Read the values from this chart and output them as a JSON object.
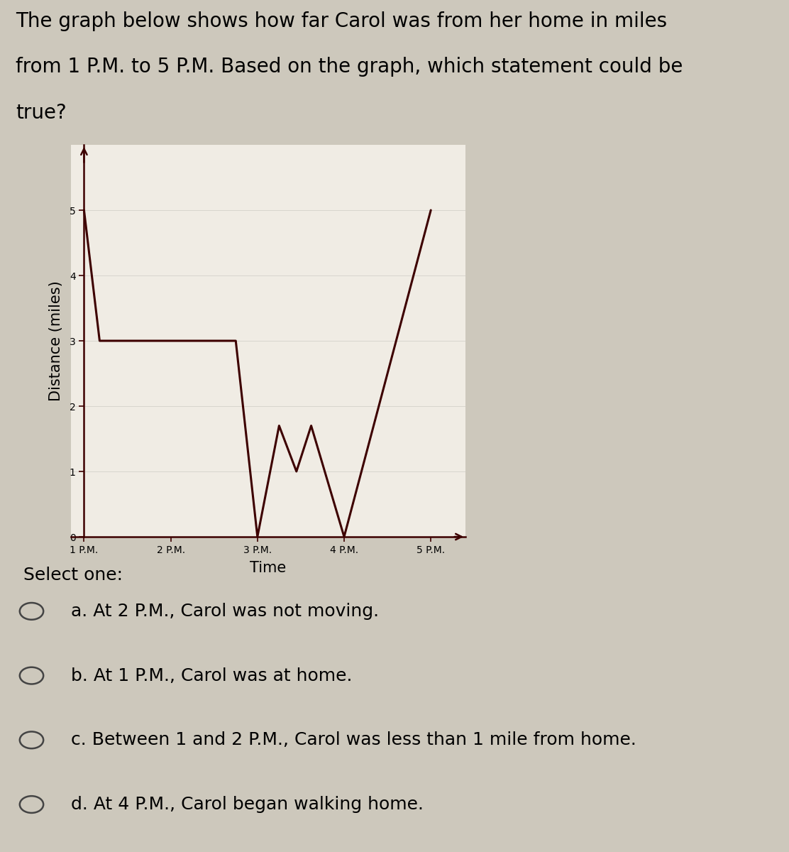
{
  "title_line1": "The graph below shows how far Carol was from her home in miles",
  "title_line2": "from 1 P.M. to 5 P.M. Based on the graph, which statement could be",
  "title_line3": "true?",
  "xlabel": "Time",
  "ylabel": "Distance (miles)",
  "x_ticks": [
    1,
    2,
    3,
    4,
    5
  ],
  "x_tick_labels": [
    "1 P.M.",
    "2 P.M.",
    "3 P.M.",
    "4 P.M.",
    "5 P.M."
  ],
  "y_ticks": [
    0,
    1,
    2,
    3,
    4,
    5
  ],
  "xlim": [
    0.85,
    5.4
  ],
  "ylim": [
    0,
    6.0
  ],
  "line_x": [
    1,
    1.18,
    1.5,
    2.5,
    2.75,
    3.0,
    3.25,
    3.45,
    3.62,
    4.0,
    5.0
  ],
  "line_y": [
    5,
    3,
    3,
    3,
    3,
    0,
    1.7,
    1.0,
    1.7,
    0,
    5
  ],
  "line_color": "#3d0000",
  "line_width": 2.2,
  "background_color": "#cdc8bc",
  "plot_bg_color": "#f0ece4",
  "select_one_text": "Select one:",
  "options": [
    "a. At 2 P.M., Carol was not moving.",
    "b. At 1 P.M., Carol was at home.",
    "c. Between 1 and 2 P.M., Carol was less than 1 mile from home.",
    "d. At 4 P.M., Carol began walking home."
  ],
  "title_fontsize": 20,
  "axis_label_fontsize": 15,
  "tick_fontsize": 13,
  "option_fontsize": 18,
  "select_fontsize": 18
}
